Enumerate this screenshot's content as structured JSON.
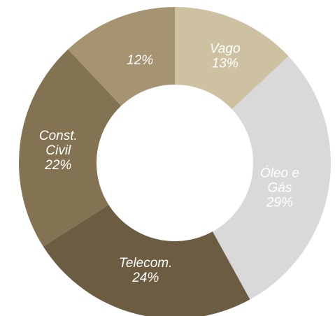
{
  "chart_data": {
    "type": "pie",
    "donut": true,
    "legend": "none",
    "slices": [
      {
        "label": "Vago",
        "value": 13,
        "value_label": "13%",
        "color": "#cdc1a2"
      },
      {
        "label": "Óleo e Gás",
        "value": 29,
        "value_label": "29%",
        "color": "#d9d9d9"
      },
      {
        "label": "Telecom.",
        "value": 24,
        "value_label": "24%",
        "color": "#6b5c42"
      },
      {
        "label": "Const. Civil",
        "value": 22,
        "value_label": "22%",
        "color": "#837352"
      },
      {
        "label": "",
        "value": 12,
        "value_label": "12%",
        "color": "#a59372"
      }
    ]
  }
}
